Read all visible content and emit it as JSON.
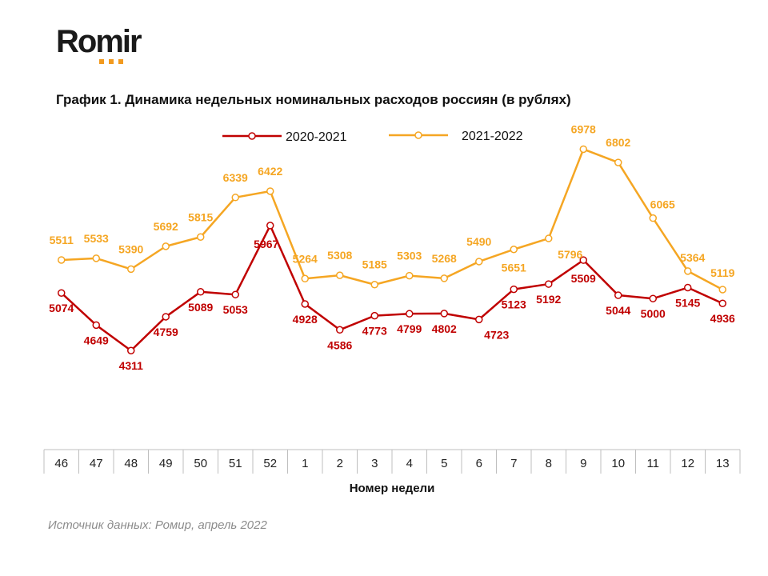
{
  "logo": {
    "text": "Romir"
  },
  "colors": {
    "series_2020": "#c00000",
    "series_2021": "#f5a623",
    "logo_dots": "#f29a1f"
  },
  "chart_data": {
    "type": "line",
    "title": "График 1. Динамика недельных номинальных расходов россиян (в рублях)",
    "xlabel": "Номер недели",
    "ylabel": "",
    "categories": [
      "46",
      "47",
      "48",
      "49",
      "50",
      "51",
      "52",
      "1",
      "2",
      "3",
      "4",
      "5",
      "6",
      "7",
      "8",
      "9",
      "10",
      "11",
      "12",
      "13"
    ],
    "ylim": [
      3000,
      8000
    ],
    "legend_position": "top-center",
    "series": [
      {
        "name": "2020-2021",
        "values": [
          5074,
          4649,
          4311,
          4759,
          5089,
          5053,
          5967,
          4928,
          4586,
          4773,
          4799,
          4802,
          4723,
          5123,
          5192,
          5509,
          5044,
          5000,
          5145,
          4936
        ]
      },
      {
        "name": "2021-2022",
        "values": [
          5511,
          5533,
          5390,
          5692,
          5815,
          6339,
          6422,
          5264,
          5308,
          5185,
          5303,
          5268,
          5490,
          5651,
          5796,
          6978,
          6802,
          6065,
          5364,
          5119
        ]
      }
    ]
  },
  "source": "Источник данных: Ромир, апрель 2022"
}
